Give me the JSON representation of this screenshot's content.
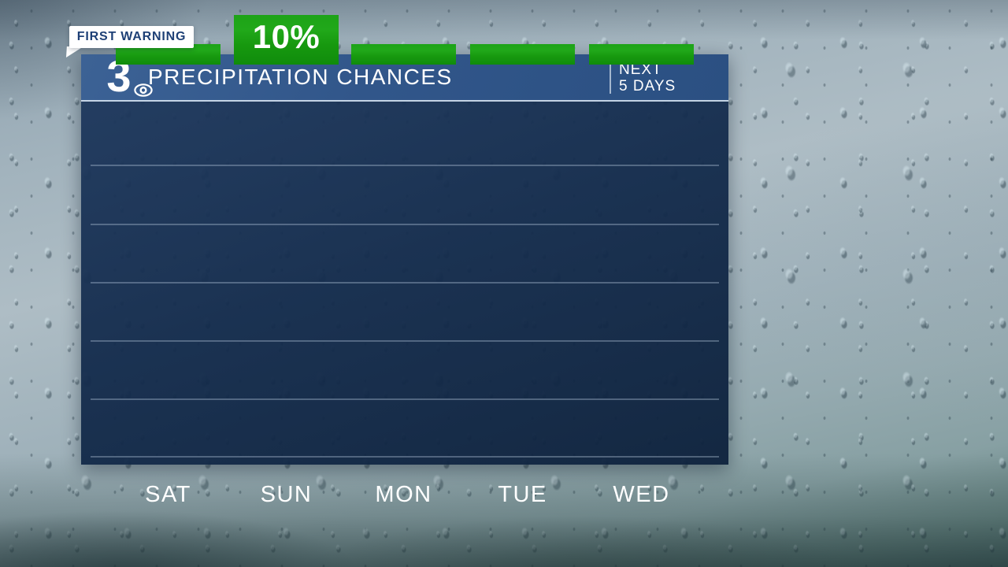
{
  "badge": {
    "label": "FIRST WARNING"
  },
  "header": {
    "station_logo": "3",
    "title": "PRECIPITATION CHANCES",
    "period_line1": "NEXT",
    "period_line2": "5 DAYS"
  },
  "colors": {
    "header_blue": "#31568a",
    "panel_navy": "#132b4c",
    "bar_green": "#189b12",
    "badge_text_blue": "#1e4076",
    "gridline": "rgba(175,195,215,0.38)",
    "text_white": "#ffffff"
  },
  "chart_data": {
    "type": "bar",
    "title": "PRECIPITATION CHANCES",
    "subtitle": "NEXT 5 DAYS",
    "categories": [
      "SAT",
      "SUN",
      "MON",
      "TUE",
      "WED"
    ],
    "values": [
      0,
      10,
      0,
      0,
      0
    ],
    "value_labels": [
      "",
      "10%",
      "",
      "",
      ""
    ],
    "unit": "%",
    "ylabel": "",
    "xlabel": "",
    "ylim": [
      0,
      100
    ],
    "gridline_step_percent": 20,
    "grid": true,
    "legend": false
  }
}
